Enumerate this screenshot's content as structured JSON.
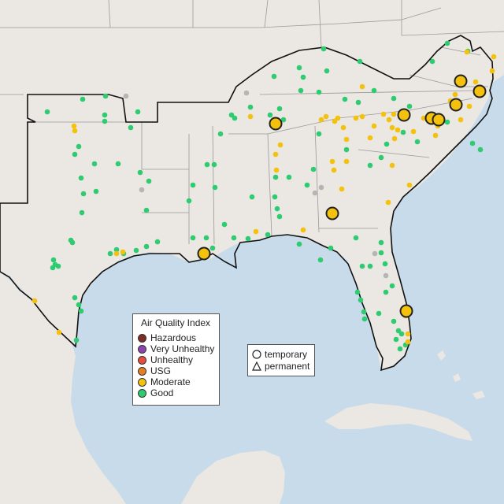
{
  "colors": {
    "ocean": "#c7dbea",
    "land": "#ebe7e2",
    "land_border": "#9a9a9a",
    "region_outline": "#111111",
    "good": "#2ecc71",
    "moderate": "#f4c20d",
    "usg": "#e67e22",
    "unhealthy": "#e74c3c",
    "very_unhealthy": "#8e44ad",
    "hazardous": "#7b2d26",
    "missing": "#b5b5b5"
  },
  "legend": {
    "title": "Air Quality Index",
    "items": [
      {
        "label": "Hazardous",
        "color": "#7b2d26",
        "icon": "hazardous-dot-icon"
      },
      {
        "label": "Very Unhealthy",
        "color": "#8e44ad",
        "icon": "very-unhealthy-dot-icon"
      },
      {
        "label": "Unhealthy",
        "color": "#e74c3c",
        "icon": "unhealthy-dot-icon"
      },
      {
        "label": "USG",
        "color": "#e67e22",
        "icon": "usg-dot-icon"
      },
      {
        "label": "Moderate",
        "color": "#f4c20d",
        "icon": "moderate-dot-icon"
      },
      {
        "label": "Good",
        "color": "#2ecc71",
        "icon": "good-dot-icon"
      }
    ]
  },
  "monitor_types": {
    "items": [
      {
        "label": "temporary",
        "icon": "circle-icon"
      },
      {
        "label": "permanent",
        "icon": "triangle-icon"
      }
    ]
  }
}
